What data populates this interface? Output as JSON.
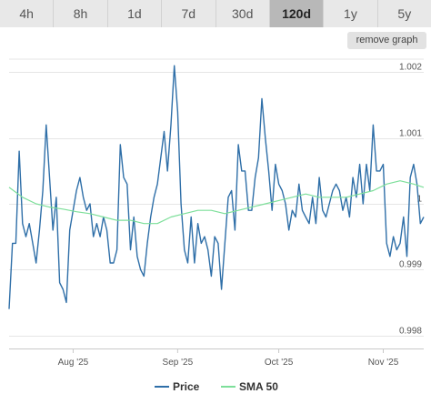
{
  "range_buttons": [
    {
      "label": "4h"
    },
    {
      "label": "8h"
    },
    {
      "label": "1d"
    },
    {
      "label": "7d"
    },
    {
      "label": "30d"
    },
    {
      "label": "120d",
      "active": true
    },
    {
      "label": "1y"
    },
    {
      "label": "5y"
    }
  ],
  "remove_graph_label": "remove graph",
  "colors": {
    "price": "#2f6fa8",
    "sma": "#7ddf9a",
    "grid": "#e6e6e6",
    "axis": "#c8c8c8"
  },
  "chart_data": {
    "type": "line",
    "title": "",
    "xlabel": "",
    "ylabel": "",
    "x_range": [
      "2025-07-13",
      "2025-11-13"
    ],
    "x_ticks": [
      {
        "date": "2025-08-01",
        "label": "Aug '25"
      },
      {
        "date": "2025-09-01",
        "label": "Sep '25"
      },
      {
        "date": "2025-10-01",
        "label": "Oct '25"
      },
      {
        "date": "2025-11-01",
        "label": "Nov '25"
      }
    ],
    "ylim": [
      0.9978,
      1.0022
    ],
    "y_ticks": [
      {
        "value": 0.998,
        "label": "0.998"
      },
      {
        "value": 0.999,
        "label": "0.999"
      },
      {
        "value": 1.0,
        "label": "1"
      },
      {
        "value": 1.001,
        "label": "1.001"
      },
      {
        "value": 1.002,
        "label": "1.002"
      }
    ],
    "grid": true,
    "legend_position": "bottom",
    "series": [
      {
        "name": "Price",
        "color": "#2f6fa8",
        "points": [
          [
            "2025-07-13",
            0.9984
          ],
          [
            "2025-07-14",
            0.9994
          ],
          [
            "2025-07-15",
            0.9994
          ],
          [
            "2025-07-16",
            1.0008
          ],
          [
            "2025-07-17",
            0.9997
          ],
          [
            "2025-07-18",
            0.9995
          ],
          [
            "2025-07-19",
            0.9997
          ],
          [
            "2025-07-20",
            0.9994
          ],
          [
            "2025-07-21",
            0.9991
          ],
          [
            "2025-07-22",
            0.9996
          ],
          [
            "2025-07-23",
            1.0002
          ],
          [
            "2025-07-24",
            1.0012
          ],
          [
            "2025-07-25",
            1.0004
          ],
          [
            "2025-07-26",
            0.9996
          ],
          [
            "2025-07-27",
            1.0001
          ],
          [
            "2025-07-28",
            0.9988
          ],
          [
            "2025-07-29",
            0.9987
          ],
          [
            "2025-07-30",
            0.9985
          ],
          [
            "2025-07-31",
            0.9996
          ],
          [
            "2025-08-01",
            0.9999
          ],
          [
            "2025-08-02",
            1.0002
          ],
          [
            "2025-08-03",
            1.0004
          ],
          [
            "2025-08-04",
            1.0001
          ],
          [
            "2025-08-05",
            0.9999
          ],
          [
            "2025-08-06",
            1.0
          ],
          [
            "2025-08-07",
            0.9995
          ],
          [
            "2025-08-08",
            0.9997
          ],
          [
            "2025-08-09",
            0.9995
          ],
          [
            "2025-08-10",
            0.9998
          ],
          [
            "2025-08-11",
            0.9996
          ],
          [
            "2025-08-12",
            0.9991
          ],
          [
            "2025-08-13",
            0.9991
          ],
          [
            "2025-08-14",
            0.9993
          ],
          [
            "2025-08-15",
            1.0009
          ],
          [
            "2025-08-16",
            1.0004
          ],
          [
            "2025-08-17",
            1.0003
          ],
          [
            "2025-08-18",
            0.9993
          ],
          [
            "2025-08-19",
            0.9998
          ],
          [
            "2025-08-20",
            0.9992
          ],
          [
            "2025-08-21",
            0.999
          ],
          [
            "2025-08-22",
            0.9989
          ],
          [
            "2025-08-23",
            0.9994
          ],
          [
            "2025-08-24",
            0.9998
          ],
          [
            "2025-08-25",
            1.0001
          ],
          [
            "2025-08-26",
            1.0003
          ],
          [
            "2025-08-27",
            1.0007
          ],
          [
            "2025-08-28",
            1.0011
          ],
          [
            "2025-08-29",
            1.0005
          ],
          [
            "2025-08-30",
            1.0012
          ],
          [
            "2025-08-31",
            1.0021
          ],
          [
            "2025-09-01",
            1.0014
          ],
          [
            "2025-09-02",
            1.0
          ],
          [
            "2025-09-03",
            0.9993
          ],
          [
            "2025-09-04",
            0.9991
          ],
          [
            "2025-09-05",
            0.9998
          ],
          [
            "2025-09-06",
            0.9991
          ],
          [
            "2025-09-07",
            0.9997
          ],
          [
            "2025-09-08",
            0.9994
          ],
          [
            "2025-09-09",
            0.9995
          ],
          [
            "2025-09-10",
            0.9993
          ],
          [
            "2025-09-11",
            0.9989
          ],
          [
            "2025-09-12",
            0.9995
          ],
          [
            "2025-09-13",
            0.9994
          ],
          [
            "2025-09-14",
            0.9987
          ],
          [
            "2025-09-15",
            0.9994
          ],
          [
            "2025-09-16",
            1.0001
          ],
          [
            "2025-09-17",
            1.0002
          ],
          [
            "2025-09-18",
            0.9996
          ],
          [
            "2025-09-19",
            1.0009
          ],
          [
            "2025-09-20",
            1.0005
          ],
          [
            "2025-09-21",
            1.0005
          ],
          [
            "2025-09-22",
            0.9999
          ],
          [
            "2025-09-23",
            0.9999
          ],
          [
            "2025-09-24",
            1.0004
          ],
          [
            "2025-09-25",
            1.0007
          ],
          [
            "2025-09-26",
            1.0016
          ],
          [
            "2025-09-27",
            1.001
          ],
          [
            "2025-09-28",
            1.0005
          ],
          [
            "2025-09-29",
            0.9999
          ],
          [
            "2025-09-30",
            1.0006
          ],
          [
            "2025-10-01",
            1.0003
          ],
          [
            "2025-10-02",
            1.0002
          ],
          [
            "2025-10-03",
            1.0
          ],
          [
            "2025-10-04",
            0.9996
          ],
          [
            "2025-10-05",
            0.9999
          ],
          [
            "2025-10-06",
            0.9998
          ],
          [
            "2025-10-07",
            1.0003
          ],
          [
            "2025-10-08",
            0.9999
          ],
          [
            "2025-10-09",
            0.9998
          ],
          [
            "2025-10-10",
            0.9997
          ],
          [
            "2025-10-11",
            1.0001
          ],
          [
            "2025-10-12",
            0.9997
          ],
          [
            "2025-10-13",
            1.0004
          ],
          [
            "2025-10-14",
            0.9999
          ],
          [
            "2025-10-15",
            0.9998
          ],
          [
            "2025-10-16",
            1.0
          ],
          [
            "2025-10-17",
            1.0002
          ],
          [
            "2025-10-18",
            1.0003
          ],
          [
            "2025-10-19",
            1.0002
          ],
          [
            "2025-10-20",
            0.9999
          ],
          [
            "2025-10-21",
            1.0001
          ],
          [
            "2025-10-22",
            0.9998
          ],
          [
            "2025-10-23",
            1.0004
          ],
          [
            "2025-10-24",
            1.0001
          ],
          [
            "2025-10-25",
            1.0006
          ],
          [
            "2025-10-26",
            1.0
          ],
          [
            "2025-10-27",
            1.0006
          ],
          [
            "2025-10-28",
            1.0002
          ],
          [
            "2025-10-29",
            1.0012
          ],
          [
            "2025-10-30",
            1.0005
          ],
          [
            "2025-10-31",
            1.0005
          ],
          [
            "2025-11-01",
            1.0006
          ],
          [
            "2025-11-02",
            0.9994
          ],
          [
            "2025-11-03",
            0.9992
          ],
          [
            "2025-11-04",
            0.9995
          ],
          [
            "2025-11-05",
            0.9993
          ],
          [
            "2025-11-06",
            0.9994
          ],
          [
            "2025-11-07",
            0.9998
          ],
          [
            "2025-11-08",
            0.9992
          ],
          [
            "2025-11-09",
            1.0004
          ],
          [
            "2025-11-10",
            1.0006
          ],
          [
            "2025-11-11",
            1.0003
          ],
          [
            "2025-11-12",
            0.9997
          ],
          [
            "2025-11-13",
            0.9998
          ]
        ]
      },
      {
        "name": "SMA 50",
        "color": "#7ddf9a",
        "points": [
          [
            "2025-07-13",
            1.00025
          ],
          [
            "2025-07-17",
            1.0001
          ],
          [
            "2025-07-21",
            1.0
          ],
          [
            "2025-07-25",
            0.99995
          ],
          [
            "2025-07-29",
            0.99992
          ],
          [
            "2025-08-02",
            0.99988
          ],
          [
            "2025-08-06",
            0.99985
          ],
          [
            "2025-08-10",
            0.9998
          ],
          [
            "2025-08-14",
            0.99975
          ],
          [
            "2025-08-18",
            0.99975
          ],
          [
            "2025-08-22",
            0.9997
          ],
          [
            "2025-08-26",
            0.9997
          ],
          [
            "2025-08-30",
            0.9998
          ],
          [
            "2025-09-03",
            0.99985
          ],
          [
            "2025-09-07",
            0.9999
          ],
          [
            "2025-09-11",
            0.9999
          ],
          [
            "2025-09-15",
            0.99985
          ],
          [
            "2025-09-19",
            0.9999
          ],
          [
            "2025-09-23",
            0.99995
          ],
          [
            "2025-09-27",
            1.0
          ],
          [
            "2025-10-01",
            1.00005
          ],
          [
            "2025-10-05",
            1.0001
          ],
          [
            "2025-10-09",
            1.00015
          ],
          [
            "2025-10-13",
            1.0001
          ],
          [
            "2025-10-17",
            1.0001
          ],
          [
            "2025-10-21",
            1.0001
          ],
          [
            "2025-10-25",
            1.00015
          ],
          [
            "2025-10-29",
            1.0002
          ],
          [
            "2025-11-02",
            1.0003
          ],
          [
            "2025-11-06",
            1.00035
          ],
          [
            "2025-11-10",
            1.0003
          ],
          [
            "2025-11-13",
            1.00025
          ]
        ]
      }
    ]
  }
}
